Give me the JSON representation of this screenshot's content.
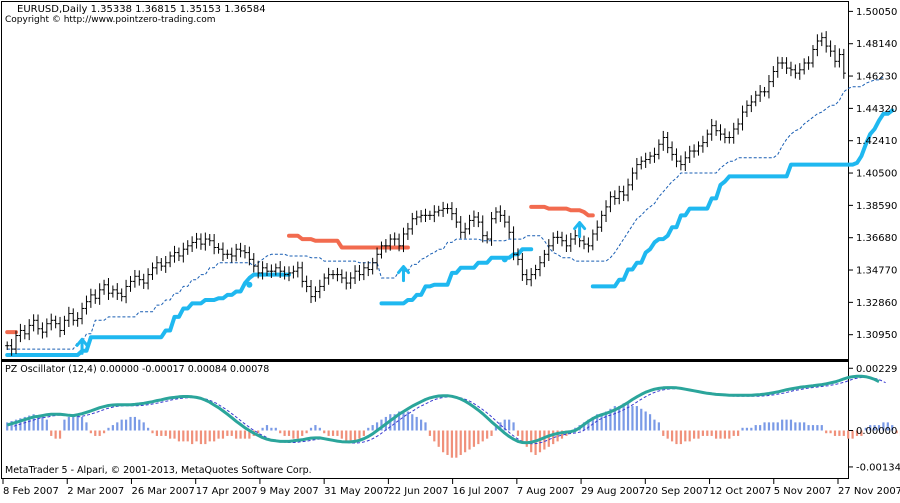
{
  "window": {
    "symbol_line": "EURUSD,Daily   1.35338 1.36815 1.35153 1.36584",
    "copyright": "Copyright © http://www.pointzero-trading.com",
    "footer": "MetaTrader 5 - Alpari, © 2001-2013, MetaQuotes Software Corp."
  },
  "colors": {
    "background": "#ffffff",
    "bars": "#000000",
    "stop_long": "#1fb8f0",
    "stop_short": "#f26b4f",
    "trail_dashed": "#1a5fb4",
    "osc_line": "#2ba59b",
    "osc_signal": "#3a3ad0",
    "hist_pos": "#7a9ae6",
    "hist_neg": "#f0907a",
    "arrow": "#1fb8f0"
  },
  "price_axis": {
    "ticks": [
      "1.50050",
      "1.48140",
      "1.46230",
      "1.44320",
      "1.42410",
      "1.40500",
      "1.38590",
      "1.36680",
      "1.34770",
      "1.32860",
      "1.30950"
    ]
  },
  "oscillator": {
    "title": "PZ Oscillator (12,4) 0.00000 -0.00017 0.00084 0.00078",
    "ticks": [
      "0.00229",
      "0.00000",
      "-0.00134"
    ]
  },
  "date_axis": {
    "labels": [
      "8 Feb 2007",
      "2 Mar 2007",
      "26 Mar 2007",
      "17 Apr 2007",
      "9 May 2007",
      "31 May 2007",
      "22 Jun 2007",
      "16 Jul 2007",
      "7 Aug 2007",
      "29 Aug 2007",
      "20 Sep 2007",
      "12 Oct 2007",
      "5 Nov 2007",
      "27 Nov 2007"
    ]
  },
  "chart_data": {
    "type": "ohlc",
    "symbol": "EURUSD",
    "timeframe": "Daily",
    "last_bar": {
      "open": 1.35338,
      "high": 1.36815,
      "low": 1.35153,
      "close": 1.36584
    },
    "x_start": "8 Feb 2007",
    "x_end": "27 Nov 2007",
    "ylim": [
      1.2975,
      1.5025
    ],
    "closes": [
      1.303,
      1.301,
      1.309,
      1.312,
      1.31,
      1.315,
      1.318,
      1.313,
      1.311,
      1.316,
      1.318,
      1.316,
      1.312,
      1.318,
      1.322,
      1.318,
      1.319,
      1.325,
      1.329,
      1.333,
      1.331,
      1.336,
      1.339,
      1.334,
      1.336,
      1.334,
      1.332,
      1.338,
      1.341,
      1.344,
      1.342,
      1.34,
      1.345,
      1.349,
      1.352,
      1.35,
      1.352,
      1.356,
      1.358,
      1.356,
      1.36,
      1.362,
      1.364,
      1.366,
      1.363,
      1.366,
      1.365,
      1.361,
      1.36,
      1.357,
      1.357,
      1.356,
      1.36,
      1.359,
      1.358,
      1.354,
      1.35,
      1.346,
      1.349,
      1.347,
      1.347,
      1.349,
      1.347,
      1.345,
      1.346,
      1.347,
      1.349,
      1.341,
      1.338,
      1.332,
      1.335,
      1.338,
      1.343,
      1.345,
      1.345,
      1.345,
      1.343,
      1.34,
      1.343,
      1.347,
      1.345,
      1.349,
      1.348,
      1.352,
      1.357,
      1.362,
      1.362,
      1.366,
      1.366,
      1.362,
      1.369,
      1.372,
      1.378,
      1.379,
      1.38,
      1.38,
      1.38,
      1.382,
      1.383,
      1.384,
      1.384,
      1.381,
      1.376,
      1.37,
      1.372,
      1.377,
      1.379,
      1.376,
      1.368,
      1.366,
      1.378,
      1.382,
      1.38,
      1.376,
      1.37,
      1.357,
      1.354,
      1.345,
      1.342,
      1.345,
      1.348,
      1.352,
      1.357,
      1.362,
      1.367,
      1.367,
      1.365,
      1.362,
      1.366,
      1.368,
      1.365,
      1.363,
      1.362,
      1.369,
      1.373,
      1.38,
      1.385,
      1.391,
      1.39,
      1.394,
      1.392,
      1.398,
      1.405,
      1.41,
      1.412,
      1.413,
      1.415,
      1.416,
      1.422,
      1.426,
      1.42,
      1.416,
      1.412,
      1.41,
      1.414,
      1.418,
      1.418,
      1.421,
      1.423,
      1.428,
      1.433,
      1.43,
      1.428,
      1.426,
      1.426,
      1.431,
      1.434,
      1.441,
      1.445,
      1.447,
      1.451,
      1.453,
      1.453,
      1.459,
      1.465,
      1.47,
      1.47,
      1.467,
      1.466,
      1.464,
      1.466,
      1.47,
      1.47,
      1.478,
      1.483,
      1.485,
      1.48,
      1.477,
      1.471,
      1.475,
      1.464
    ],
    "stop_long_segments": [
      {
        "from": 0,
        "to": 64,
        "values": [
          1.2975,
          1.2975,
          1.2975,
          1.2975,
          1.2975,
          1.2975,
          1.2975,
          1.2975,
          1.2975,
          1.2975,
          1.2975,
          1.2975,
          1.2975,
          1.2975,
          1.2975,
          1.2975,
          1.2975,
          1.3,
          1.3,
          1.308,
          1.308,
          1.308,
          1.308,
          1.308,
          1.308,
          1.308,
          1.308,
          1.308,
          1.308,
          1.308,
          1.308,
          1.308,
          1.308,
          1.308,
          1.308,
          1.308,
          1.312,
          1.312,
          1.32,
          1.32,
          1.325,
          1.325,
          1.328,
          1.328,
          1.328,
          1.33,
          1.33,
          1.33,
          1.331,
          1.331,
          1.333,
          1.333,
          1.335,
          1.335,
          1.34,
          1.343,
          1.345,
          1.345,
          1.345,
          1.345,
          1.345,
          1.345,
          1.345,
          1.345,
          1.345
        ]
      },
      {
        "from": 85,
        "to": 119,
        "values": [
          1.328,
          1.328,
          1.328,
          1.328,
          1.328,
          1.328,
          1.33,
          1.33,
          1.333,
          1.333,
          1.338,
          1.338,
          1.339,
          1.339,
          1.339,
          1.339,
          1.346,
          1.346,
          1.349,
          1.349,
          1.349,
          1.349,
          1.352,
          1.352,
          1.352,
          1.355,
          1.355,
          1.355,
          1.355,
          1.355,
          1.357,
          1.357,
          1.36,
          1.36,
          1.36
        ]
      },
      {
        "from": 133,
        "to": 201,
        "values": [
          1.338,
          1.338,
          1.338,
          1.338,
          1.338,
          1.338,
          1.342,
          1.342,
          1.348,
          1.348,
          1.352,
          1.352,
          1.358,
          1.36,
          1.364,
          1.366,
          1.366,
          1.368,
          1.373,
          1.373,
          1.38,
          1.38,
          1.384,
          1.384,
          1.384,
          1.384,
          1.384,
          1.39,
          1.39,
          1.398,
          1.4,
          1.403,
          1.403,
          1.403,
          1.403,
          1.403,
          1.403,
          1.403,
          1.403,
          1.403,
          1.403,
          1.403,
          1.403,
          1.403,
          1.403,
          1.41,
          1.41,
          1.41,
          1.41,
          1.41,
          1.41,
          1.41,
          1.41,
          1.41,
          1.41,
          1.41,
          1.41,
          1.41,
          1.41,
          1.41,
          1.411,
          1.415,
          1.422,
          1.428,
          1.431,
          1.436,
          1.44,
          1.44,
          1.442
        ]
      }
    ],
    "stop_short_segments": [
      {
        "from": 0,
        "to": 2,
        "values": [
          1.311,
          1.311,
          1.311
        ]
      },
      {
        "from": 64,
        "to": 91,
        "values": [
          1.368,
          1.368,
          1.368,
          1.366,
          1.366,
          1.366,
          1.365,
          1.365,
          1.365,
          1.365,
          1.365,
          1.365,
          1.361,
          1.361,
          1.361,
          1.361,
          1.361,
          1.361,
          1.361,
          1.361,
          1.361,
          1.361,
          1.361,
          1.361,
          1.361,
          1.361,
          1.361,
          1.361
        ]
      },
      {
        "from": 119,
        "to": 133,
        "values": [
          1.385,
          1.385,
          1.385,
          1.385,
          1.384,
          1.384,
          1.384,
          1.384,
          1.384,
          1.383,
          1.383,
          1.383,
          1.382,
          1.38,
          1.38
        ]
      }
    ],
    "trail_dashed": [
      1.301,
      1.301,
      1.301,
      1.301,
      1.301,
      1.301,
      1.301,
      1.301,
      1.301,
      1.301,
      1.301,
      1.301,
      1.301,
      1.301,
      1.301,
      1.301,
      1.305,
      1.305,
      1.31,
      1.31,
      1.318,
      1.318,
      1.318,
      1.32,
      1.32,
      1.32,
      1.32,
      1.32,
      1.32,
      1.32,
      1.323,
      1.323,
      1.323,
      1.323,
      1.327,
      1.327,
      1.33,
      1.33,
      1.334,
      1.334,
      1.338,
      1.338,
      1.342,
      1.342,
      1.345,
      1.345,
      1.349,
      1.349,
      1.352,
      1.352,
      1.352,
      1.352,
      1.352,
      1.352,
      1.352,
      1.352,
      1.35,
      1.352,
      1.354,
      1.356,
      1.357,
      1.357,
      1.357,
      1.357,
      1.356,
      1.356,
      1.356,
      1.356,
      1.356,
      1.355,
      1.355,
      1.355,
      1.353,
      1.353,
      1.353,
      1.353,
      1.353,
      1.353,
      1.353,
      1.353,
      1.352,
      1.352,
      1.352,
      1.352,
      1.352,
      1.343,
      1.343,
      1.343,
      1.343,
      1.347,
      1.347,
      1.347,
      1.351,
      1.351,
      1.354,
      1.355,
      1.357,
      1.358,
      1.36,
      1.36,
      1.364,
      1.364,
      1.366,
      1.366,
      1.366,
      1.366,
      1.366,
      1.366,
      1.365,
      1.365,
      1.365,
      1.365,
      1.365,
      1.365,
      1.366,
      1.366,
      1.366,
      1.366,
      1.368,
      1.368,
      1.368,
      1.368,
      1.365,
      1.361,
      1.358,
      1.357,
      1.355,
      1.355,
      1.355,
      1.353,
      1.353,
      1.353,
      1.353,
      1.353,
      1.353,
      1.353,
      1.353,
      1.355,
      1.358,
      1.362,
      1.366,
      1.37,
      1.374,
      1.378,
      1.38,
      1.383,
      1.385,
      1.387,
      1.391,
      1.394,
      1.397,
      1.4,
      1.402,
      1.405,
      1.405,
      1.405,
      1.405,
      1.405,
      1.405,
      1.405,
      1.405,
      1.405,
      1.408,
      1.41,
      1.412,
      1.412,
      1.414,
      1.414,
      1.414,
      1.414,
      1.414,
      1.414,
      1.414,
      1.414,
      1.414,
      1.416,
      1.421,
      1.425,
      1.428,
      1.43,
      1.431,
      1.434,
      1.436,
      1.438,
      1.44,
      1.441,
      1.443,
      1.445,
      1.445,
      1.448,
      1.453,
      1.455,
      1.456,
      1.456,
      1.456,
      1.458,
      1.459,
      1.46,
      1.46,
      1.462
    ],
    "signals": [
      {
        "type": "arrow-up",
        "index": 17,
        "price": 1.302
      },
      {
        "type": "dot",
        "index": 55,
        "price": 1.339
      },
      {
        "type": "arrow-up",
        "index": 90,
        "price": 1.345
      },
      {
        "type": "dot",
        "index": 113,
        "price": 1.354
      },
      {
        "type": "arrow-up",
        "index": 130,
        "price": 1.371
      }
    ],
    "oscillator_ylim": [
      -0.0016,
      0.0023
    ],
    "oscillator_line": [
      0.0002,
      0.00025,
      0.0003,
      0.00035,
      0.0004,
      0.00045,
      0.0005,
      0.00052,
      0.00055,
      0.00058,
      0.0006,
      0.0006,
      0.0006,
      0.00058,
      0.00056,
      0.00055,
      0.00058,
      0.00062,
      0.00067,
      0.00072,
      0.00078,
      0.00084,
      0.00088,
      0.00092,
      0.00094,
      0.00095,
      0.00095,
      0.00095,
      0.00095,
      0.00096,
      0.00098,
      0.001,
      0.00103,
      0.00106,
      0.0011,
      0.00113,
      0.00117,
      0.0012,
      0.00122,
      0.00124,
      0.00125,
      0.00125,
      0.00124,
      0.00122,
      0.00118,
      0.00112,
      0.00104,
      0.00094,
      0.00084,
      0.00072,
      0.0006,
      0.00047,
      0.00034,
      0.00022,
      0.0001,
      0.0,
      -0.0001,
      -0.00018,
      -0.00026,
      -0.00032,
      -0.00036,
      -0.00038,
      -0.0004,
      -0.0004,
      -0.0004,
      -0.00038,
      -0.00036,
      -0.00034,
      -0.00031,
      -0.00028,
      -0.00027,
      -0.00027,
      -0.0003,
      -0.00033,
      -0.00036,
      -0.00039,
      -0.00041,
      -0.00042,
      -0.00042,
      -0.0004,
      -0.00036,
      -0.0003,
      -0.00022,
      -0.00012,
      0.0,
      0.00012,
      0.00024,
      0.00036,
      0.00048,
      0.0006,
      0.0007,
      0.0008,
      0.0009,
      0.00098,
      0.00106,
      0.00114,
      0.0012,
      0.00124,
      0.00127,
      0.00128,
      0.00128,
      0.00126,
      0.00122,
      0.00116,
      0.00108,
      0.00098,
      0.00087,
      0.00075,
      0.00062,
      0.00047,
      0.00032,
      0.00018,
      4e-05,
      -0.0001,
      -0.00022,
      -0.00032,
      -0.0004,
      -0.00044,
      -0.00045,
      -0.00043,
      -0.00039,
      -0.00033,
      -0.00026,
      -0.0002,
      -0.00015,
      -0.00011,
      -8e-05,
      -6e-05,
      -4e-05,
      0.0,
      0.0001,
      0.00022,
      0.00034,
      0.00044,
      0.00052,
      0.00058,
      0.00063,
      0.00069,
      0.00076,
      0.00084,
      0.00093,
      0.00103,
      0.00114,
      0.00124,
      0.00133,
      0.00141,
      0.00147,
      0.00152,
      0.00155,
      0.00157,
      0.00158,
      0.00158,
      0.00157,
      0.00155,
      0.00152,
      0.00149,
      0.00146,
      0.00143,
      0.0014,
      0.00137,
      0.00135,
      0.00133,
      0.00132,
      0.00131,
      0.0013,
      0.0013,
      0.0013,
      0.0013,
      0.0013,
      0.0013,
      0.00131,
      0.00132,
      0.00134,
      0.00136,
      0.00139,
      0.00142,
      0.00146,
      0.0015,
      0.00153,
      0.00156,
      0.00159,
      0.00161,
      0.00163,
      0.00165,
      0.00167,
      0.00169,
      0.00172,
      0.00175,
      0.00179,
      0.00184,
      0.0019,
      0.00195,
      0.00198,
      0.002,
      0.002,
      0.00198,
      0.00194,
      0.00188,
      0.0018
    ],
    "histogram": [
      0.0003,
      0.00035,
      0.0004,
      0.00045,
      0.0005,
      0.00055,
      0.0006,
      0.00055,
      0.0005,
      0.0004,
      -0.0002,
      -0.0003,
      -0.0003,
      0.0004,
      0.0005,
      0.0006,
      0.0006,
      0.0005,
      0.0003,
      -0.0001,
      -0.0002,
      -0.0002,
      -0.0001,
      0.0001,
      0.0002,
      0.0003,
      0.0004,
      0.0004,
      0.0005,
      0.0005,
      0.0004,
      0.0003,
      0.0001,
      -0.0001,
      -0.0002,
      -0.0002,
      -0.0002,
      -0.0003,
      -0.0003,
      -0.0004,
      -0.0004,
      -0.0004,
      -0.0005,
      -0.0004,
      -0.0005,
      -0.0005,
      -0.0004,
      -0.0004,
      -0.0003,
      -0.0003,
      -0.0002,
      -0.0002,
      -0.0003,
      -0.0003,
      -0.0003,
      -0.0003,
      -0.0002,
      -0.0001,
      0.0001,
      0.0002,
      0.0001,
      0.0001,
      -0.0001,
      -0.0002,
      -0.0002,
      -0.0003,
      -0.0003,
      -0.0002,
      -0.0001,
      0.0001,
      0.0002,
      0.0001,
      -0.0001,
      -0.0002,
      -0.0002,
      -0.0002,
      -0.0003,
      -0.0004,
      -0.0004,
      -0.0004,
      -0.0003,
      -0.0002,
      0.0001,
      0.0002,
      0.0003,
      0.0004,
      0.0005,
      0.0006,
      0.0006,
      0.0007,
      0.0007,
      0.0007,
      0.0006,
      0.0005,
      0.0004,
      0.0003,
      -0.0002,
      -0.0004,
      -0.0006,
      -0.0008,
      -0.0009,
      -0.001,
      -0.001,
      -0.0009,
      -0.0008,
      -0.0007,
      -0.0006,
      -0.0005,
      -0.0004,
      -0.0003,
      -0.0002,
      0.0002,
      0.0003,
      0.0004,
      0.0004,
      0.0003,
      -0.0002,
      -0.0004,
      -0.0006,
      -0.0008,
      -0.0009,
      -0.0008,
      -0.0007,
      -0.0006,
      -0.0005,
      -0.0004,
      -0.0003,
      -0.0002,
      -0.0001,
      0.0001,
      0.0002,
      0.0003,
      0.0004,
      0.0005,
      0.0006,
      0.0006,
      0.0007,
      0.0008,
      0.0009,
      0.0009,
      0.001,
      0.001,
      0.0009,
      0.0009,
      0.0008,
      0.0007,
      0.0006,
      0.0004,
      0.0003,
      -0.0002,
      -0.0003,
      -0.0004,
      -0.0005,
      -0.0005,
      -0.0004,
      -0.0004,
      -0.0003,
      -0.0003,
      -0.0002,
      -0.0002,
      -0.0002,
      -0.0003,
      -0.0003,
      -0.0003,
      -0.0003,
      -0.0002,
      -0.0002,
      0.0001,
      0.0001,
      0.0001,
      0.0002,
      0.0002,
      0.0003,
      0.0003,
      0.0003,
      0.0003,
      0.0004,
      0.0004,
      0.0004,
      0.0003,
      0.0003,
      0.0003,
      0.0002,
      0.0002,
      0.0002,
      0.0002,
      -0.0001,
      -0.0001,
      -0.0002,
      -0.0002,
      -0.0002,
      -0.0003,
      -0.0003,
      -0.0002,
      -0.0002,
      0.0001,
      0.0002,
      0.0002,
      0.0002,
      0.0003,
      0.0003,
      0.0002,
      -0.0001,
      -0.0002
    ]
  }
}
